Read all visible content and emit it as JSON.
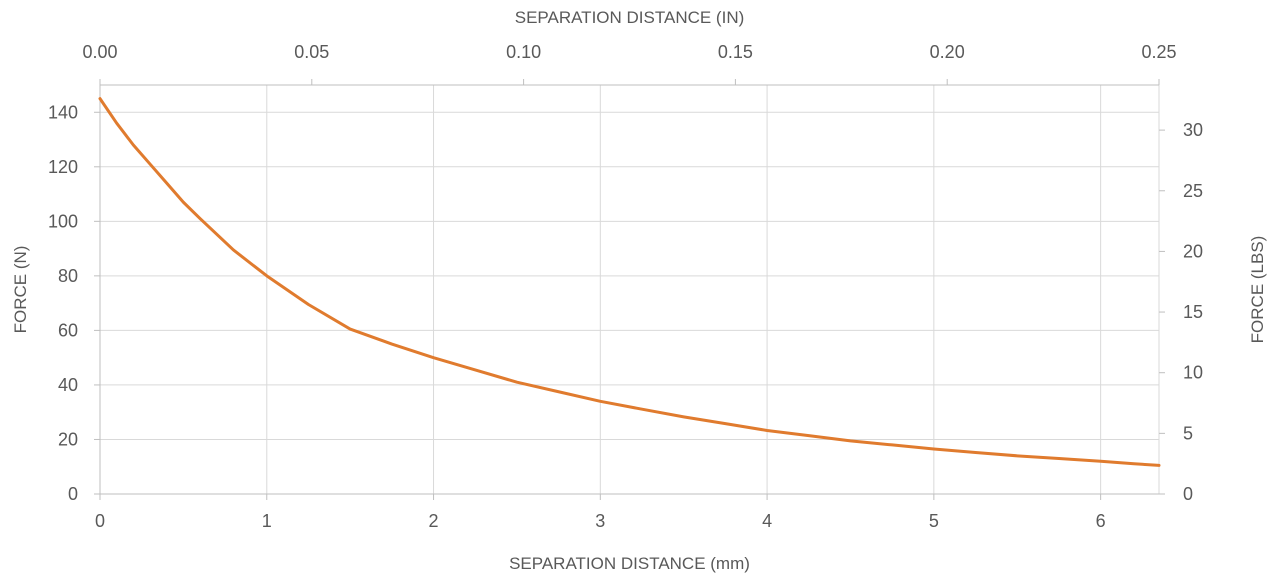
{
  "chart_data": {
    "type": "line",
    "title": "",
    "xlabel": "SEPARATION DISTANCE (mm)",
    "x2label": "SEPARATION DISTANCE (IN)",
    "ylabel": "FORCE (N)",
    "y2label": "FORCE (LBS)",
    "xlim": [
      0,
      6.35
    ],
    "x2lim": [
      0,
      0.25
    ],
    "ylim": [
      0,
      150
    ],
    "y2lim": [
      0,
      33.72
    ],
    "x_ticks": [
      "0",
      "1",
      "2",
      "3",
      "4",
      "5",
      "6"
    ],
    "x2_ticks": [
      "0.00",
      "0.05",
      "0.10",
      "0.15",
      "0.20",
      "0.25"
    ],
    "y_ticks": [
      "0",
      "20",
      "40",
      "60",
      "80",
      "100",
      "120",
      "140"
    ],
    "y2_ticks": [
      "0",
      "5",
      "10",
      "15",
      "20",
      "25",
      "30"
    ],
    "grid": true,
    "legend": "none",
    "series_color": "#e07b2e",
    "series": [
      {
        "x": [
          0,
          0.1,
          0.2,
          0.3,
          0.4,
          0.5,
          0.6,
          0.8,
          1.0,
          1.25,
          1.5,
          1.75,
          2.0,
          2.25,
          2.5,
          2.75,
          3.0,
          3.25,
          3.5,
          3.75,
          4.0,
          4.25,
          4.5,
          4.75,
          5.0,
          5.25,
          5.5,
          5.75,
          6.0,
          6.2,
          6.35
        ],
        "y": [
          145,
          136,
          128,
          121,
          114,
          107,
          101,
          89.5,
          80,
          69.5,
          60.5,
          55,
          50,
          45.5,
          41,
          37.5,
          34,
          31.1,
          28.3,
          25.8,
          23.3,
          21.4,
          19.5,
          18.0,
          16.5,
          15.2,
          14.0,
          13.0,
          12.0,
          11.1,
          10.5
        ]
      }
    ]
  }
}
